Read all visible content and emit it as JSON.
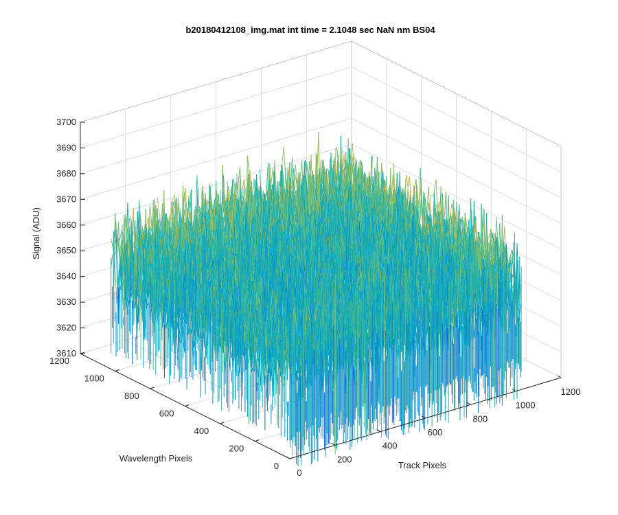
{
  "chart_data": {
    "type": "surface",
    "title": "b20180412108_img.mat int time = 2.1048 sec  NaN nm BS04",
    "xlabel": "Track Pixels",
    "ylabel": "Wavelength Pixels",
    "zlabel": "Signal (ADU)",
    "xlim": [
      0,
      1200
    ],
    "ylim": [
      0,
      1200
    ],
    "zlim": [
      3610,
      3700
    ],
    "x_ticks": [
      "0",
      "200",
      "400",
      "600",
      "800",
      "1000",
      "1200"
    ],
    "y_ticks": [
      "0",
      "200",
      "400",
      "600",
      "800",
      "1000",
      "1200"
    ],
    "z_ticks": [
      "3610",
      "3620",
      "3630",
      "3640",
      "3650",
      "3660",
      "3670",
      "3680",
      "3690",
      "3700"
    ],
    "data_extent": {
      "x": [
        0,
        1024
      ],
      "y": [
        0,
        1024
      ]
    },
    "signal_mean": 3652,
    "signal_range": [
      3605,
      3697
    ],
    "grid": true,
    "colormap": [
      "#1565d8",
      "#0d86cf",
      "#0a9ecb",
      "#17aeb5",
      "#4ab893",
      "#87bd6d",
      "#c6bb48",
      "#e8b830"
    ]
  }
}
